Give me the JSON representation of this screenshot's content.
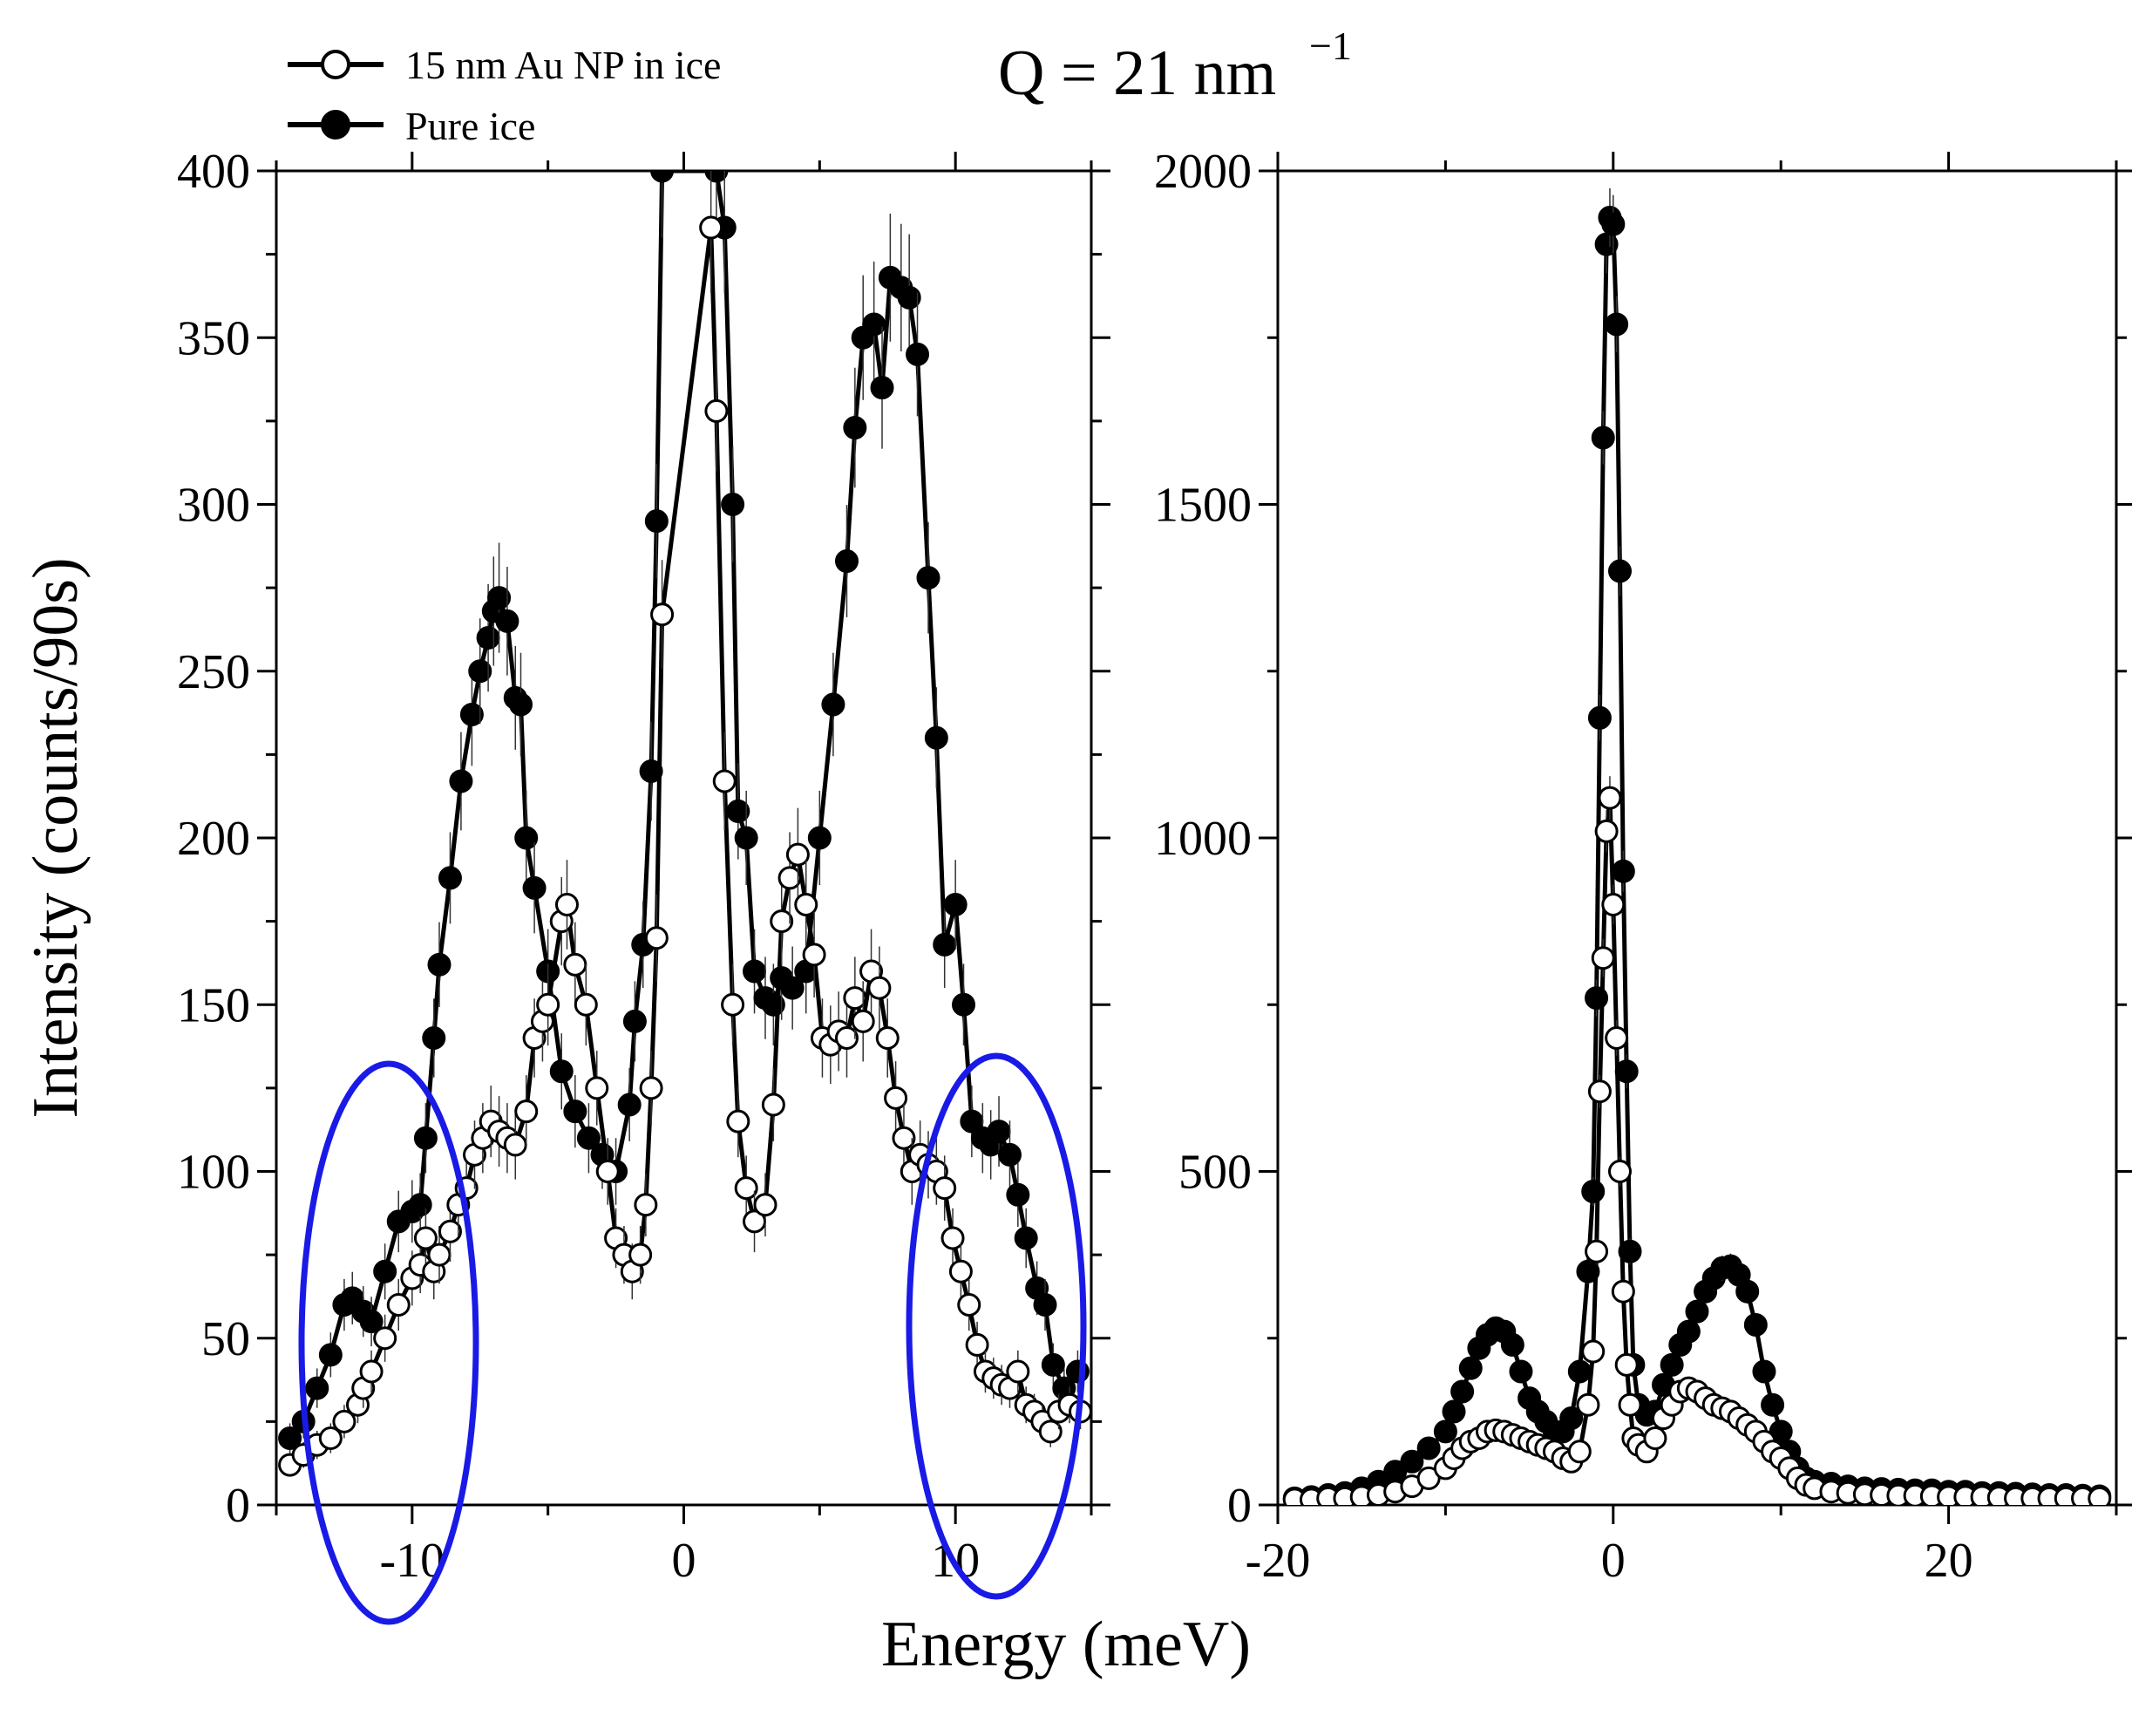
{
  "title": {
    "main": "Q = 21 nm",
    "superscript": "−1"
  },
  "legend": [
    {
      "label": "15 nm Au NP in ice",
      "marker": "open-circle"
    },
    {
      "label": "Pure ice",
      "marker": "filled-circle"
    }
  ],
  "colors": {
    "line": "#000000",
    "highlight_ellipse": "#1a1ae6",
    "background": "#ffffff"
  },
  "chart_data": [
    {
      "type": "scatter",
      "panel": "left",
      "xlabel": "Energy (meV)",
      "ylabel": "Intensity (counts/90s)",
      "xlim": [
        -15,
        15
      ],
      "ylim": [
        0,
        400
      ],
      "xticks": [
        -10,
        0,
        10
      ],
      "yticks": [
        0,
        50,
        100,
        150,
        200,
        250,
        300,
        350,
        400
      ],
      "annotations": [
        "ellipse around -11 meV, 0-130 counts",
        "ellipse around 11 meV, 10-160 counts"
      ],
      "series": [
        {
          "name": "Pure ice",
          "marker": "filled",
          "x": [
            -14.5,
            -14,
            -13.5,
            -13,
            -12.5,
            -12.2,
            -11.8,
            -11.5,
            -11,
            -10.5,
            -10,
            -9.7,
            -9.5,
            -9.2,
            -9,
            -8.6,
            -8.2,
            -7.8,
            -7.5,
            -7.2,
            -7,
            -6.8,
            -6.5,
            -6.2,
            -6,
            -5.8,
            -5.5,
            -5,
            -4.5,
            -4,
            -3.5,
            -3,
            -2.5,
            -2,
            -1.8,
            -1.5,
            -1.2,
            -1,
            -0.8,
            1.2,
            1.5,
            1.8,
            2,
            2.3,
            2.6,
            3,
            3.3,
            3.6,
            4,
            4.5,
            5,
            5.5,
            6,
            6.3,
            6.6,
            7,
            7.3,
            7.6,
            8,
            8.3,
            8.6,
            9,
            9.3,
            9.6,
            10,
            10.3,
            10.6,
            11,
            11.3,
            11.6,
            12,
            12.3,
            12.6,
            13,
            13.3,
            13.6,
            14,
            14.5
          ],
          "y": [
            20,
            25,
            35,
            45,
            60,
            62,
            58,
            55,
            70,
            85,
            88,
            90,
            110,
            140,
            162,
            188,
            217,
            237,
            250,
            260,
            268,
            272,
            265,
            242,
            240,
            200,
            185,
            160,
            130,
            118,
            110,
            105,
            100,
            120,
            145,
            168,
            220,
            295,
            400,
            400,
            383,
            300,
            208,
            200,
            160,
            152,
            150,
            158,
            155,
            160,
            200,
            240,
            283,
            323,
            350,
            354,
            335,
            368,
            365,
            362,
            345,
            278,
            230,
            168,
            180,
            150,
            115,
            110,
            108,
            112,
            105,
            93,
            80,
            65,
            60,
            42,
            35,
            40
          ]
        },
        {
          "name": "15 nm Au NP in ice",
          "marker": "open",
          "x": [
            -14.5,
            -14,
            -13.5,
            -13,
            -12.5,
            -12,
            -11.8,
            -11.5,
            -11,
            -10.5,
            -10,
            -9.7,
            -9.5,
            -9.2,
            -9,
            -8.6,
            -8.3,
            -8,
            -7.7,
            -7.4,
            -7.1,
            -6.8,
            -6.5,
            -6.2,
            -5.8,
            -5.5,
            -5.2,
            -5,
            -4.5,
            -4.3,
            -4,
            -3.6,
            -3.2,
            -2.8,
            -2.5,
            -2.2,
            -1.9,
            -1.6,
            -1.4,
            -1.2,
            -1,
            -0.8,
            1,
            1.2,
            1.5,
            1.8,
            2,
            2.3,
            2.6,
            3,
            3.3,
            3.6,
            3.9,
            4.2,
            4.5,
            4.8,
            5.1,
            5.4,
            5.7,
            6,
            6.3,
            6.6,
            6.9,
            7.2,
            7.5,
            7.8,
            8.1,
            8.4,
            8.7,
            9,
            9.3,
            9.6,
            9.9,
            10.2,
            10.5,
            10.8,
            11.1,
            11.4,
            11.7,
            12,
            12.3,
            12.6,
            12.9,
            13.2,
            13.5,
            13.8,
            14.2,
            14.6
          ],
          "y": [
            12,
            15,
            18,
            20,
            25,
            30,
            35,
            40,
            50,
            60,
            68,
            72,
            80,
            70,
            75,
            82,
            90,
            95,
            105,
            110,
            115,
            112,
            110,
            108,
            118,
            140,
            145,
            150,
            175,
            180,
            162,
            150,
            125,
            100,
            80,
            75,
            70,
            75,
            90,
            125,
            170,
            267,
            383,
            328,
            217,
            150,
            115,
            95,
            85,
            90,
            120,
            175,
            188,
            195,
            180,
            165,
            140,
            138,
            142,
            140,
            152,
            145,
            160,
            155,
            140,
            122,
            110,
            100,
            105,
            102,
            100,
            95,
            80,
            70,
            60,
            48,
            40,
            38,
            36,
            35,
            40,
            30,
            28,
            25,
            22,
            28,
            30,
            28
          ]
        }
      ]
    },
    {
      "type": "scatter",
      "panel": "right",
      "xlabel": "Energy (meV)",
      "ylabel": "",
      "xlim": [
        -20,
        30
      ],
      "ylim": [
        0,
        2000
      ],
      "xticks": [
        -20,
        0,
        20
      ],
      "yticks": [
        0,
        500,
        1000,
        1500,
        2000
      ],
      "series": [
        {
          "name": "Pure ice",
          "marker": "filled",
          "x": [
            -19,
            -18,
            -17,
            -16,
            -15,
            -14,
            -13,
            -12,
            -11,
            -10,
            -9.5,
            -9,
            -8.5,
            -8,
            -7.5,
            -7,
            -6.5,
            -6,
            -5.5,
            -5,
            -4.5,
            -4,
            -3.5,
            -3,
            -2.5,
            -2,
            -1.5,
            -1.2,
            -1,
            -0.8,
            -0.6,
            -0.4,
            -0.2,
            0,
            0.2,
            0.4,
            0.6,
            0.8,
            1,
            1.2,
            1.5,
            2,
            2.5,
            3,
            3.5,
            4,
            4.5,
            5,
            5.5,
            6,
            6.5,
            7,
            7.5,
            8,
            8.5,
            9,
            9.5,
            10,
            10.5,
            11,
            11.5,
            12,
            13,
            14,
            15,
            16,
            17,
            18,
            19,
            20,
            21,
            22,
            23,
            24,
            25,
            26,
            27,
            28,
            29
          ],
          "y": [
            10,
            12,
            15,
            18,
            25,
            35,
            50,
            65,
            85,
            110,
            140,
            170,
            205,
            235,
            255,
            265,
            260,
            240,
            200,
            160,
            140,
            125,
            110,
            110,
            130,
            200,
            350,
            470,
            760,
            1180,
            1600,
            1890,
            1930,
            1920,
            1770,
            1400,
            950,
            650,
            380,
            210,
            150,
            135,
            140,
            180,
            210,
            240,
            260,
            290,
            320,
            340,
            355,
            358,
            345,
            320,
            270,
            200,
            150,
            110,
            80,
            55,
            40,
            35,
            32,
            28,
            25,
            24,
            23,
            22,
            22,
            20,
            20,
            18,
            18,
            17,
            16,
            15,
            15,
            14,
            13
          ]
        },
        {
          "name": "15 nm Au NP in ice",
          "marker": "open",
          "x": [
            -19,
            -18,
            -17,
            -16,
            -15,
            -14,
            -13,
            -12,
            -11,
            -10,
            -9.5,
            -9,
            -8.5,
            -8,
            -7.5,
            -7,
            -6.5,
            -6,
            -5.5,
            -5,
            -4.5,
            -4,
            -3.5,
            -3,
            -2.5,
            -2,
            -1.5,
            -1.2,
            -1,
            -0.8,
            -0.6,
            -0.4,
            -0.2,
            0,
            0.2,
            0.4,
            0.6,
            0.8,
            1,
            1.2,
            1.5,
            2,
            2.5,
            3,
            3.5,
            4,
            4.5,
            5,
            5.5,
            6,
            6.5,
            7,
            7.5,
            8,
            8.5,
            9,
            9.5,
            10,
            10.5,
            11,
            11.5,
            12,
            13,
            14,
            15,
            16,
            17,
            18,
            19,
            20,
            21,
            22,
            23,
            24,
            25,
            26,
            27,
            28,
            29
          ],
          "y": [
            8,
            8,
            10,
            10,
            12,
            15,
            20,
            28,
            40,
            55,
            70,
            85,
            95,
            100,
            110,
            112,
            110,
            105,
            100,
            95,
            90,
            85,
            80,
            70,
            65,
            80,
            150,
            230,
            380,
            620,
            820,
            1010,
            1060,
            900,
            700,
            500,
            320,
            210,
            150,
            100,
            90,
            80,
            100,
            130,
            150,
            170,
            175,
            170,
            160,
            150,
            145,
            140,
            130,
            120,
            110,
            95,
            80,
            70,
            55,
            40,
            30,
            25,
            20,
            18,
            16,
            15,
            14,
            14,
            13,
            12,
            12,
            12,
            11,
            10,
            10,
            10,
            10,
            10,
            10
          ]
        }
      ]
    }
  ]
}
